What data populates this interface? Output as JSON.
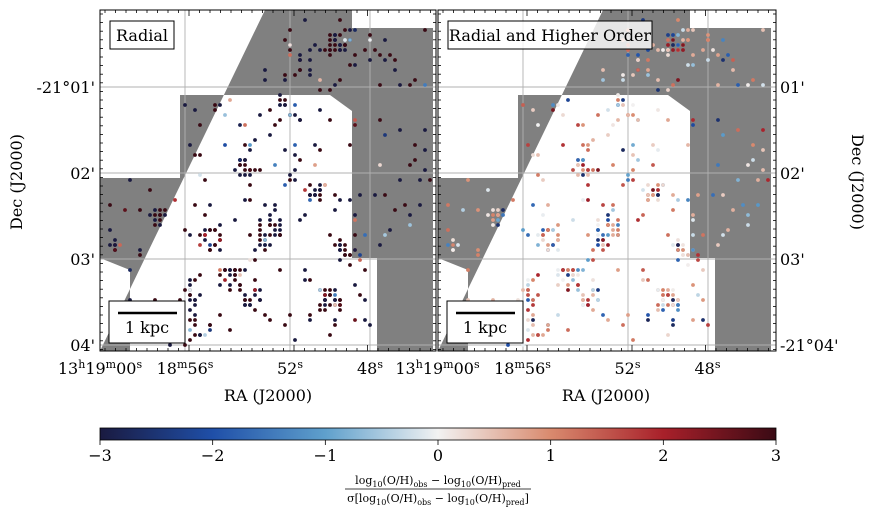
{
  "chart_data": [
    {
      "type": "scatter",
      "panel": "left",
      "label": "Radial",
      "scalebar": "1 kpc",
      "xlabel": "RA (J2000)",
      "ylabel": "Dec (J2000)",
      "ra_ticks": [
        {
          "sup_h": "h",
          "sup_m": "m",
          "sup_s": "s",
          "h": "13",
          "m": "19",
          "s": "00"
        },
        {
          "sup_m": "m",
          "sup_s": "s",
          "m": "18",
          "s": "56"
        },
        {
          "sup_s": "s",
          "s": "52"
        },
        {
          "sup_s": "s",
          "s": "48"
        }
      ],
      "dec_ticks": [
        "-21°01'",
        "02'",
        "03'",
        "04'"
      ],
      "colorscale_clip": [
        -3,
        3
      ],
      "description_of_pattern": "mostly saturated blue (-3) and dark red (+3) residuals"
    },
    {
      "type": "scatter",
      "panel": "right",
      "label": "Radial and Higher Order",
      "scalebar": "1 kpc",
      "xlabel": "RA (J2000)",
      "ylabel": "Dec (J2000)",
      "ra_ticks": [
        {
          "sup_h": "h",
          "sup_m": "m",
          "sup_s": "s",
          "h": "13",
          "m": "19",
          "s": "00"
        },
        {
          "sup_m": "m",
          "sup_s": "s",
          "m": "18",
          "s": "56"
        },
        {
          "sup_s": "s",
          "s": "52"
        },
        {
          "sup_s": "s",
          "s": "48"
        }
      ],
      "dec_ticks": [
        "01'",
        "02'",
        "03'",
        "-21°04'"
      ],
      "colorscale_clip": [
        -3,
        3
      ]
    }
  ],
  "colorbar": {
    "ticks": [
      "−3",
      "−2",
      "−1",
      "0",
      "1",
      "2",
      "3"
    ],
    "vmin": -3,
    "vmax": 3,
    "colors": [
      "#1a1a40",
      "#1f4fa8",
      "#5fa0cc",
      "#f2f2f2",
      "#d98a6e",
      "#a8202a",
      "#3a0a14"
    ],
    "label_num_a": "log",
    "label_num_b": "(O/H)",
    "label_num_obs": "obs",
    "label_num_pred": "pred",
    "label_den_sigma": "σ[log",
    "label_den_tail": "]",
    "sub10": "10"
  },
  "colors": {
    "map_gray": "#808080",
    "grid": "#b0b0b0"
  }
}
